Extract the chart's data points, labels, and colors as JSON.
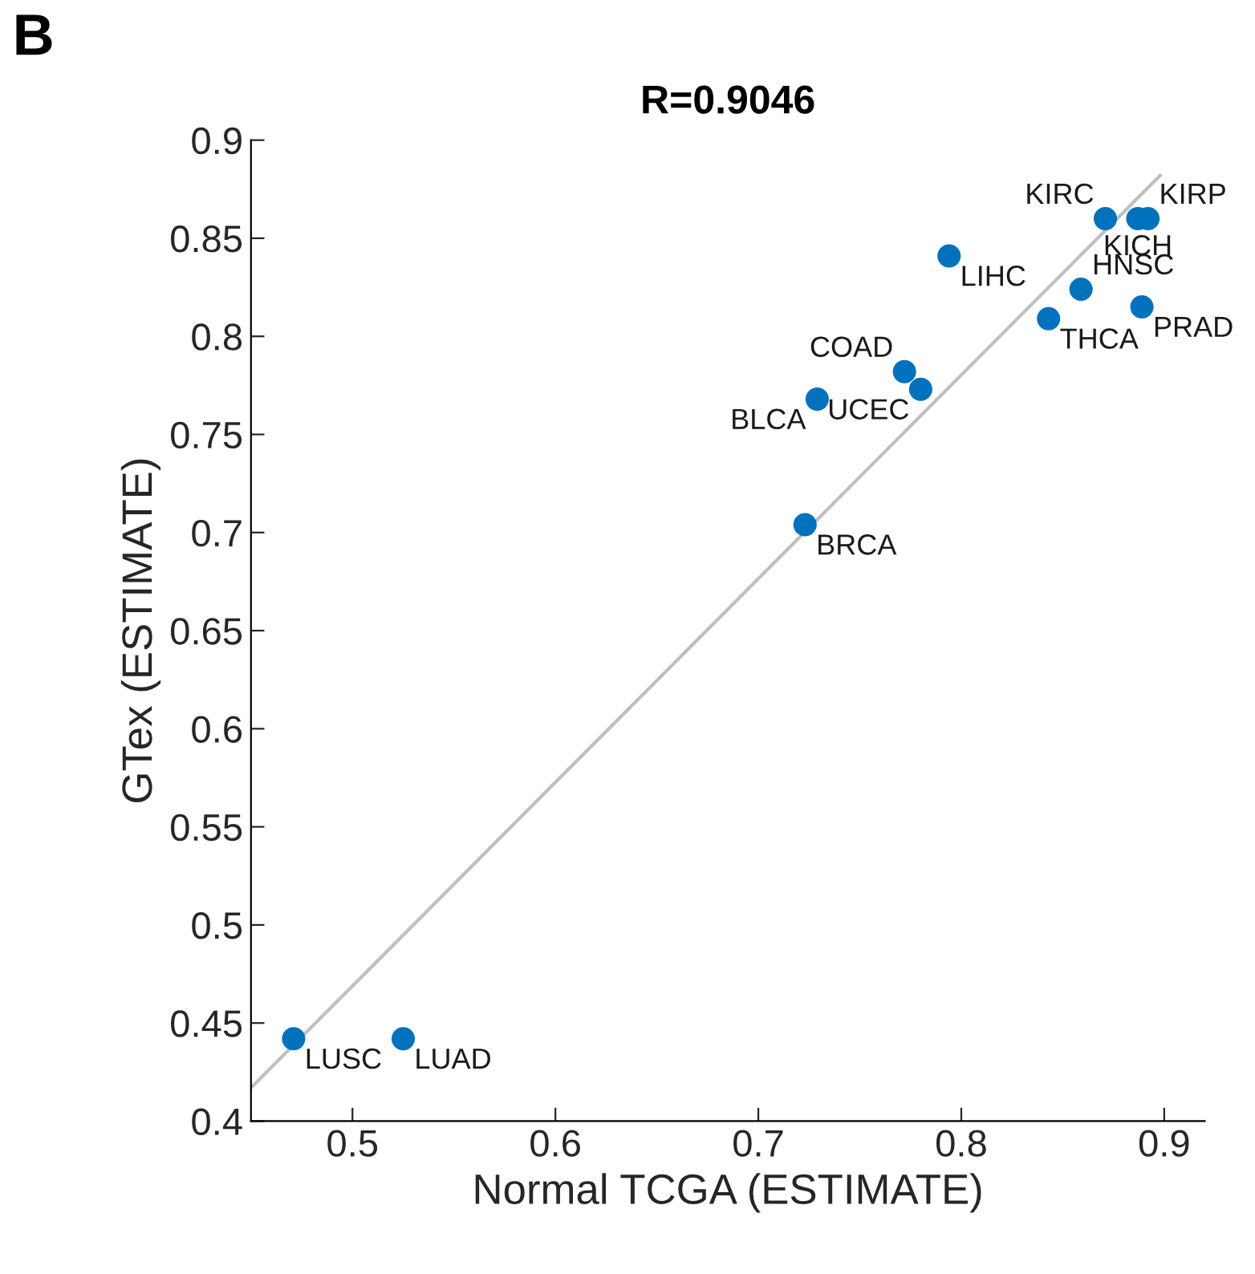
{
  "chart_data": {
    "type": "scatter",
    "title": "R=0.9046",
    "xlabel": "Normal TCGA (ESTIMATE)",
    "ylabel": "GTex (ESTIMATE)",
    "xlim": [
      0.45,
      0.92
    ],
    "ylim": [
      0.4,
      0.9
    ],
    "xticks": [
      0.5,
      0.6,
      0.7,
      0.8,
      0.9
    ],
    "yticks": [
      0.4,
      0.45,
      0.5,
      0.55,
      0.6,
      0.65,
      0.7,
      0.75,
      0.8,
      0.85,
      0.9
    ],
    "grid": false,
    "legend": false,
    "series": [
      {
        "type": "line",
        "marker": "none",
        "color": "#bfbfbf",
        "x": [
          0.45,
          0.898
        ],
        "values": [
          0.417,
          0.882
        ]
      },
      {
        "type": "scatter",
        "marker": "circle",
        "color": "#0072bd",
        "x": [
          0.471,
          0.525,
          0.723,
          0.729,
          0.772,
          0.78,
          0.794,
          0.843,
          0.859,
          0.889,
          0.871,
          0.887,
          0.892
        ],
        "values": [
          0.442,
          0.442,
          0.704,
          0.768,
          0.782,
          0.773,
          0.841,
          0.809,
          0.824,
          0.815,
          0.86,
          0.86,
          0.86
        ]
      }
    ],
    "annotations": [
      "B",
      {
        "text": "LUSC",
        "x": 0.471,
        "y": 0.442
      },
      {
        "text": "LUAD",
        "x": 0.525,
        "y": 0.442
      },
      {
        "text": "BRCA",
        "x": 0.723,
        "y": 0.704
      },
      {
        "text": "BLCA",
        "x": 0.729,
        "y": 0.768
      },
      {
        "text": "COAD",
        "x": 0.772,
        "y": 0.782
      },
      {
        "text": "UCEC",
        "x": 0.78,
        "y": 0.773
      },
      {
        "text": "LIHC",
        "x": 0.794,
        "y": 0.841
      },
      {
        "text": "THCA",
        "x": 0.843,
        "y": 0.809
      },
      {
        "text": "HNSC",
        "x": 0.859,
        "y": 0.824
      },
      {
        "text": "PRAD",
        "x": 0.889,
        "y": 0.815
      },
      {
        "text": "KIRC",
        "x": 0.871,
        "y": 0.86
      },
      {
        "text": "KICH",
        "x": 0.887,
        "y": 0.86
      },
      {
        "text": "KIRP",
        "x": 0.892,
        "y": 0.86
      }
    ]
  }
}
